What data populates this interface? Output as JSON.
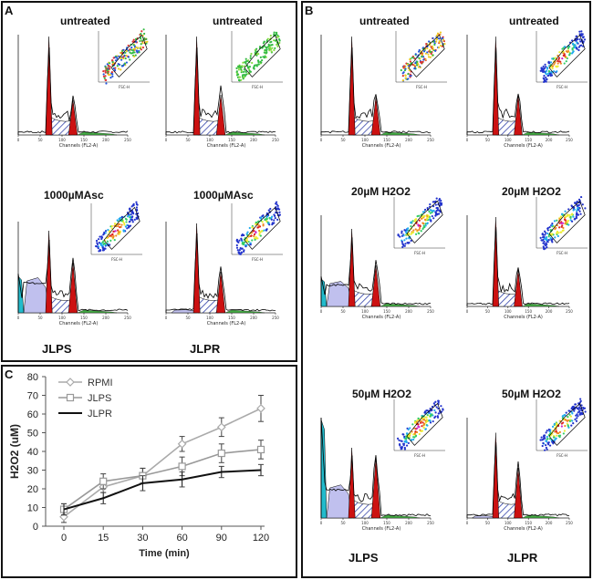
{
  "figure": {
    "panel_a": {
      "letter": "A",
      "rows": [
        {
          "left_label": "untreated",
          "right_label": "untreated"
        },
        {
          "left_label": "1000µMAsc",
          "right_label": "1000µMAsc"
        }
      ],
      "bottom_labels": {
        "left": "JLPS",
        "right": "JLPR"
      }
    },
    "panel_b": {
      "letter": "B",
      "rows": [
        {
          "left_label": "untreated",
          "right_label": "untreated"
        },
        {
          "left_label": "20µM  H2O2",
          "right_label": "20µM  H2O2"
        },
        {
          "left_label": "50µM  H2O2",
          "right_label": "50µM  H2O2"
        }
      ],
      "bottom_labels": {
        "left": "JLPS",
        "right": "JLPR"
      }
    },
    "histogram_axis_text": {
      "x_label_fl2": "Channels (FL2-A)",
      "x_label_fl2_alt": "Channels (FL2-A)",
      "scatter_x_label": "FSC-H",
      "tick_0": "0",
      "tick_50": "50",
      "tick_100": "100",
      "tick_150": "150",
      "tick_200": "200",
      "tick_250": "250"
    },
    "colors": {
      "g1_peak": "#cc1111",
      "s_phase": "#3344aa",
      "sub_g1": "#c0c0ee",
      "debris": "#22bbcc",
      "g2_tail": "#44aa44",
      "frame": "#111111"
    }
  },
  "chart_data": {
    "type": "line",
    "panel_letter": "C",
    "title": "",
    "xlabel": "Time (min)",
    "ylabel": "H2O2  (uM)",
    "categories": [
      "0",
      "15",
      "30",
      "60",
      "90",
      "120"
    ],
    "ylim": [
      0,
      80
    ],
    "yticks": [
      "0",
      "10",
      "20",
      "30",
      "40",
      "50",
      "60",
      "70",
      "80"
    ],
    "legend_position": "top-left",
    "series": [
      {
        "name": "RPMI",
        "marker": "diamond",
        "color": "#aaaaaa",
        "values": [
          5,
          21,
          27,
          44,
          53,
          63
        ],
        "errors": [
          3,
          3,
          4,
          4,
          5,
          7
        ]
      },
      {
        "name": "JLPS",
        "marker": "square",
        "color": "#999999",
        "values": [
          9,
          24,
          27,
          32,
          39,
          41
        ],
        "errors": [
          3,
          4,
          4,
          5,
          5,
          5
        ]
      },
      {
        "name": "JLPR",
        "marker": "none",
        "color": "#111111",
        "values": [
          9,
          15,
          23,
          25,
          29,
          30
        ],
        "errors": [
          3,
          3,
          4,
          4,
          3,
          3
        ]
      }
    ]
  }
}
